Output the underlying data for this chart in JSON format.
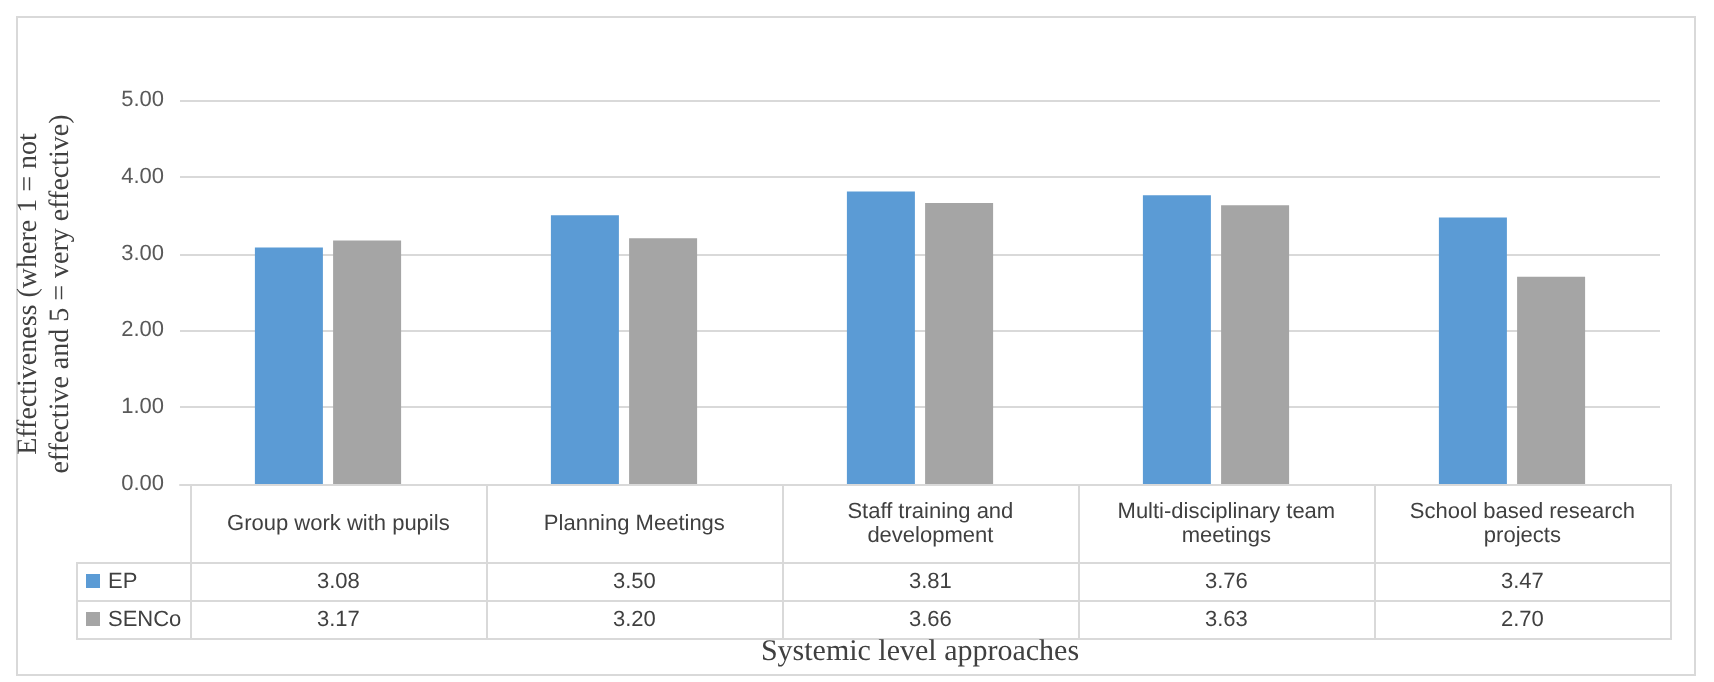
{
  "chart_data": {
    "type": "bar",
    "ylabel": "Effectiveness (where 1 = not effective and 5 = very effective)",
    "xlabel": "Systemic level approaches",
    "categories": [
      "Group work with pupils",
      "Planning Meetings",
      "Staff training and development",
      "Multi-disciplinary team meetings",
      "School based research projects"
    ],
    "series": [
      {
        "name": "EP",
        "color": "#5b9bd5",
        "values": [
          3.08,
          3.5,
          3.81,
          3.76,
          3.47
        ],
        "value_labels": [
          "3.08",
          "3.50",
          "3.81",
          "3.76",
          "3.47"
        ]
      },
      {
        "name": "SENCo",
        "color": "#a5a5a5",
        "values": [
          3.17,
          3.2,
          3.66,
          3.63,
          2.7
        ],
        "value_labels": [
          "3.17",
          "3.20",
          "3.66",
          "3.63",
          "2.70"
        ]
      }
    ],
    "ylim": [
      0,
      5
    ],
    "yticks": [
      {
        "value": 0,
        "label": "0.00"
      },
      {
        "value": 1,
        "label": "1.00"
      },
      {
        "value": 2,
        "label": "2.00"
      },
      {
        "value": 3,
        "label": "3.00"
      },
      {
        "value": 4,
        "label": "4.00"
      },
      {
        "value": 5,
        "label": "5.00"
      }
    ],
    "grid": "y",
    "legend": "bottom"
  }
}
